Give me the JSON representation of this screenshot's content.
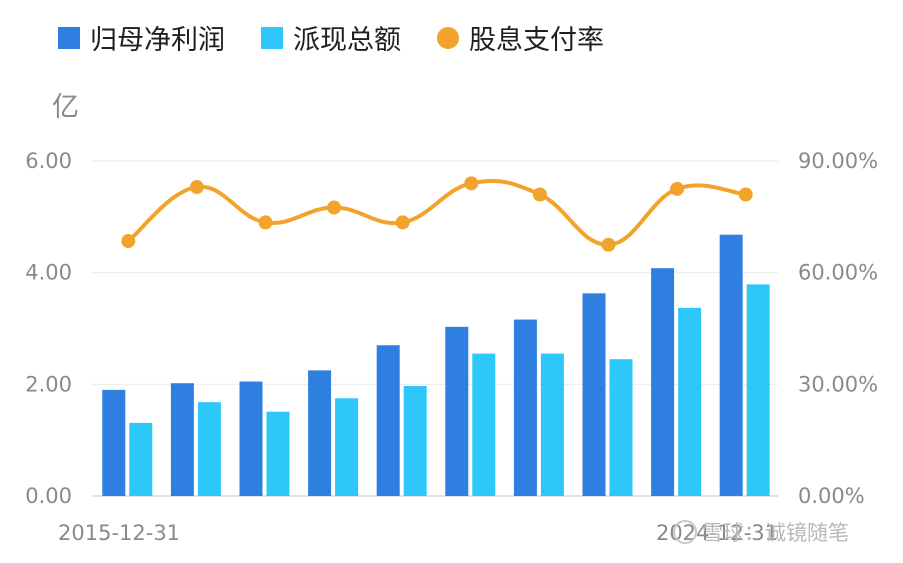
{
  "chart_data": {
    "type": "bar",
    "x_labels_visible": [
      "2015-12-31",
      "2024-12-31"
    ],
    "y_unit": "亿",
    "ylim_left": [
      0,
      6
    ],
    "yticks_left": [
      "0.00",
      "2.00",
      "4.00",
      "6.00"
    ],
    "ylim_right": [
      0,
      90
    ],
    "yticks_right": [
      "0.00%",
      "30.00%",
      "60.00%",
      "90.00%"
    ],
    "series": [
      {
        "name": "归母净利润",
        "kind": "bar",
        "axis": "left",
        "color": "#2e7fdf",
        "values": [
          1.9,
          2.02,
          2.05,
          2.25,
          2.7,
          3.03,
          3.16,
          3.63,
          4.08,
          4.68
        ]
      },
      {
        "name": "派现总额",
        "kind": "bar",
        "axis": "left",
        "color": "#2ec7f9",
        "values": [
          1.31,
          1.68,
          1.51,
          1.75,
          1.97,
          2.55,
          2.55,
          2.45,
          3.37,
          3.79
        ]
      },
      {
        "name": "股息支付率",
        "kind": "line",
        "axis": "right",
        "color": "#f2a32c",
        "unit": "%",
        "values": [
          68.5,
          83.0,
          73.5,
          77.5,
          73.5,
          84.0,
          81.0,
          67.5,
          82.5,
          81.0
        ]
      }
    ],
    "grid": true,
    "legend_position": "top-left"
  },
  "watermark": "雪球：诚镜随笔"
}
